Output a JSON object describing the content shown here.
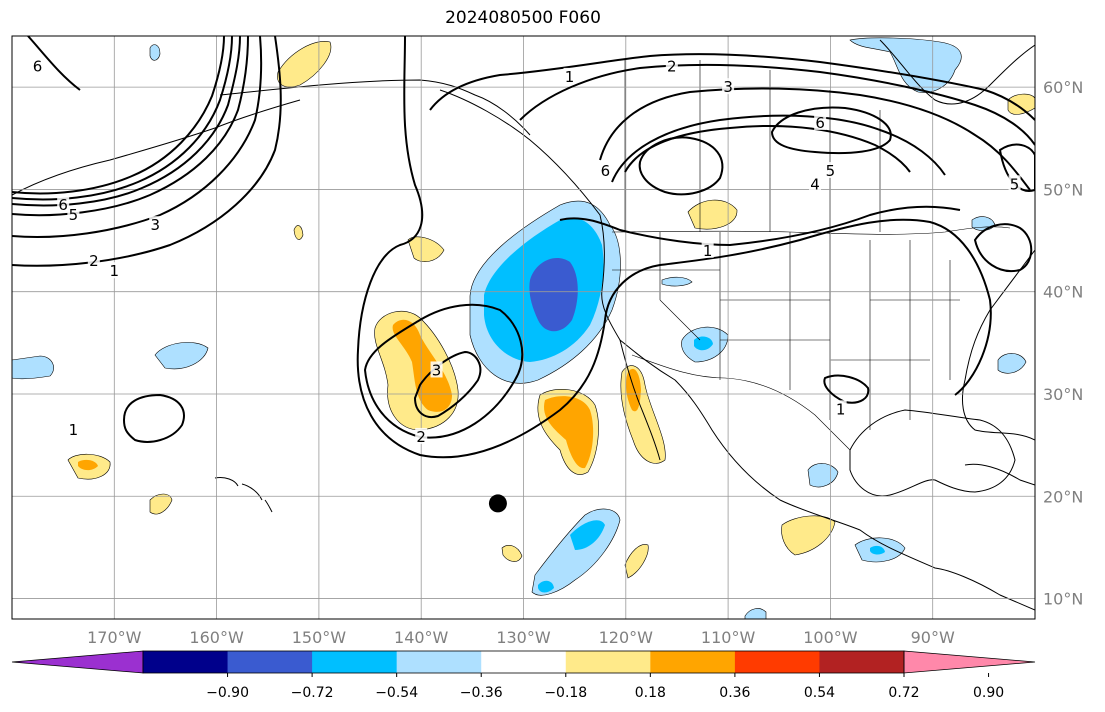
{
  "title": "2024080500 F060",
  "map": {
    "extent": {
      "lon_min": -180,
      "lon_max": -80,
      "lat_min": 8,
      "lat_max": 65
    },
    "lon_ticks": [
      {
        "value": -170,
        "label": "170°W"
      },
      {
        "value": -160,
        "label": "160°W"
      },
      {
        "value": -150,
        "label": "150°W"
      },
      {
        "value": -140,
        "label": "140°W"
      },
      {
        "value": -130,
        "label": "130°W"
      },
      {
        "value": -120,
        "label": "120°W"
      },
      {
        "value": -110,
        "label": "110°W"
      },
      {
        "value": -100,
        "label": "100°W"
      },
      {
        "value": -90,
        "label": "90°W"
      }
    ],
    "lat_ticks": [
      {
        "value": 60,
        "label": "60°N"
      },
      {
        "value": 50,
        "label": "50°N"
      },
      {
        "value": 40,
        "label": "40°N"
      },
      {
        "value": 30,
        "label": "30°N"
      },
      {
        "value": 20,
        "label": "20°N"
      },
      {
        "value": 10,
        "label": "10°N"
      }
    ],
    "marker": {
      "lon": -132.5,
      "lat": 19.3,
      "color": "#000000"
    },
    "contour_labels": [
      {
        "text": "1",
        "lon": -170,
        "lat": 42
      },
      {
        "text": "2",
        "lon": -172,
        "lat": 43
      },
      {
        "text": "3",
        "lon": -166,
        "lat": 46.5
      },
      {
        "text": "5",
        "lon": -174,
        "lat": 47.5
      },
      {
        "text": "6",
        "lon": -175,
        "lat": 48.5
      },
      {
        "text": "6",
        "lon": -177.5,
        "lat": 62
      },
      {
        "text": "3",
        "lon": -138.5,
        "lat": 32.3
      },
      {
        "text": "2",
        "lon": -140,
        "lat": 25.8
      },
      {
        "text": "1",
        "lon": -174,
        "lat": 26.5
      },
      {
        "text": "1",
        "lon": -125.5,
        "lat": 61
      },
      {
        "text": "2",
        "lon": -115.5,
        "lat": 62
      },
      {
        "text": "3",
        "lon": -110,
        "lat": 60
      },
      {
        "text": "6",
        "lon": -101,
        "lat": 56.5
      },
      {
        "text": "6",
        "lon": -122,
        "lat": 51.8
      },
      {
        "text": "5",
        "lon": -100,
        "lat": 51.8
      },
      {
        "text": "4",
        "lon": -101.5,
        "lat": 50.5
      },
      {
        "text": "1",
        "lon": -112,
        "lat": 44
      },
      {
        "text": "1",
        "lon": -99,
        "lat": 28.5
      },
      {
        "text": "5",
        "lon": -82,
        "lat": 50.5
      }
    ]
  },
  "colorbar": {
    "colors": [
      "#9b30d0",
      "#00008b",
      "#3a5bd0",
      "#00bfff",
      "#aee0ff",
      "#ffffff",
      "#ffea8a",
      "#ffa500",
      "#ff3b00",
      "#b22222",
      "#ff88aa"
    ],
    "tick_labels": [
      "−0.90",
      "−0.72",
      "−0.54",
      "−0.36",
      "−0.18",
      "0.18",
      "0.36",
      "0.54",
      "0.72",
      "0.90"
    ]
  }
}
